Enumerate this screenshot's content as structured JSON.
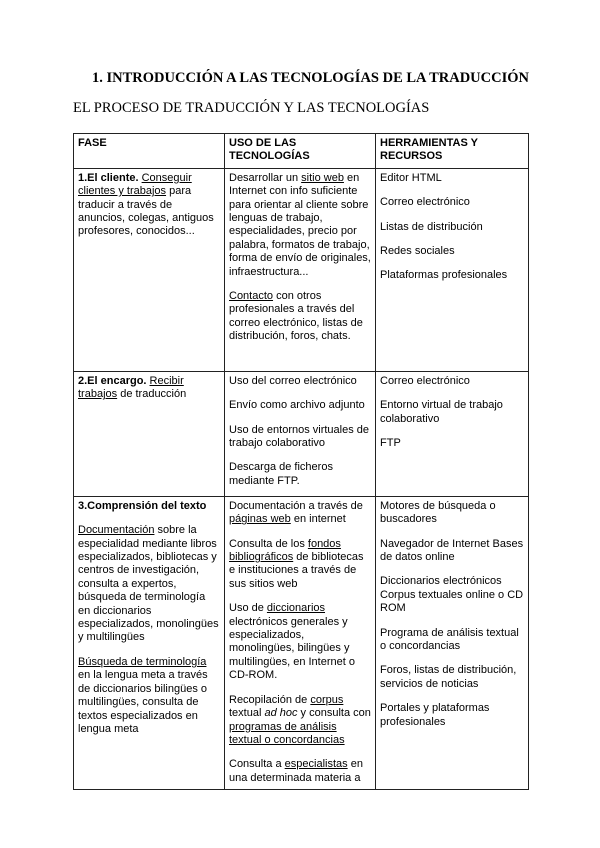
{
  "document": {
    "title": "1.  INTRODUCCIÓN A LAS TECNOLOGÍAS DE LA TRADUCCIÓN",
    "subtitle": "EL PROCESO DE TRADUCCIÓN Y LAS TECNOLOGÍAS"
  },
  "table": {
    "headers": [
      "FASE",
      "USO DE LAS TECNOLOGÍAS",
      "HERRAMIENTAS Y RECURSOS"
    ],
    "rows": [
      {
        "cells": [
          {
            "paragraphs": [
              [
                {
                  "text": "1.El cliente. ",
                  "style": "b"
                },
                {
                  "text": "Conseguir clientes y trabajos",
                  "style": "u"
                },
                {
                  "text": " para traducir a través de anuncios, colegas, antiguos profesores, conocidos...",
                  "style": ""
                }
              ]
            ]
          },
          {
            "paragraphs": [
              [
                {
                  "text": "Desarrollar un ",
                  "style": ""
                },
                {
                  "text": "sitio web",
                  "style": "u"
                },
                {
                  "text": " en Internet con info suficiente para orientar al cliente sobre lenguas de trabajo, especialidades, precio por palabra, formatos de trabajo, forma de envío de originales, infraestructura...",
                  "style": ""
                }
              ],
              [
                {
                  "text": "Contacto",
                  "style": "u"
                },
                {
                  "text": " con otros profesionales a través del correo electrónico, listas de distribución, foros, chats.",
                  "style": ""
                }
              ]
            ]
          },
          {
            "paragraphs": [
              [
                {
                  "text": "Editor HTML",
                  "style": ""
                }
              ],
              [
                {
                  "text": "Correo electrónico",
                  "style": ""
                }
              ],
              [
                {
                  "text": "Listas de distribución",
                  "style": ""
                }
              ],
              [
                {
                  "text": "Redes sociales",
                  "style": ""
                }
              ],
              [
                {
                  "text": "Plataformas profesionales",
                  "style": ""
                }
              ]
            ]
          }
        ]
      },
      {
        "cells": [
          {
            "paragraphs": [
              [
                {
                  "text": "2.El encargo. ",
                  "style": "b"
                },
                {
                  "text": "Recibir trabajos",
                  "style": "u"
                },
                {
                  "text": " de traducción",
                  "style": ""
                }
              ]
            ]
          },
          {
            "paragraphs": [
              [
                {
                  "text": "Uso del correo electrónico",
                  "style": ""
                }
              ],
              [
                {
                  "text": "Envío como archivo adjunto",
                  "style": ""
                }
              ],
              [
                {
                  "text": "Uso de entornos virtuales de trabajo colaborativo",
                  "style": ""
                }
              ],
              [
                {
                  "text": "Descarga de ficheros mediante FTP.",
                  "style": ""
                }
              ]
            ]
          },
          {
            "paragraphs": [
              [
                {
                  "text": "Correo electrónico",
                  "style": ""
                }
              ],
              [
                {
                  "text": "Entorno virtual de trabajo colaborativo",
                  "style": ""
                }
              ],
              [
                {
                  "text": "FTP",
                  "style": ""
                }
              ]
            ]
          }
        ]
      },
      {
        "cells": [
          {
            "paragraphs": [
              [
                {
                  "text": "3.Comprensión del texto",
                  "style": "b"
                }
              ],
              [
                {
                  "text": "Documentación",
                  "style": "u"
                },
                {
                  "text": " sobre la especialidad mediante libros especializados, bibliotecas y centros de investigación, consulta a expertos, búsqueda de terminología en diccionarios especializados, monolingües y multilingües",
                  "style": ""
                }
              ],
              [
                {
                  "text": "Búsqueda de terminología",
                  "style": "u"
                },
                {
                  "text": " en la lengua meta a través de diccionarios bilingües o multilingües, consulta de textos especializados en lengua meta",
                  "style": ""
                }
              ]
            ]
          },
          {
            "paragraphs": [
              [
                {
                  "text": "Documentación a través de ",
                  "style": ""
                },
                {
                  "text": "páginas web",
                  "style": "u"
                },
                {
                  "text": " en internet",
                  "style": ""
                }
              ],
              [
                {
                  "text": "Consulta de los ",
                  "style": ""
                },
                {
                  "text": "fondos bibliográficos",
                  "style": "u"
                },
                {
                  "text": " de bibliotecas e instituciones a través de sus sitios web",
                  "style": ""
                }
              ],
              [
                {
                  "text": "Uso de ",
                  "style": ""
                },
                {
                  "text": "diccionarios",
                  "style": "u"
                },
                {
                  "text": " electrónicos generales y especializados, monolingües, bilingües y multilingües, en Internet o CD-ROM.",
                  "style": ""
                }
              ],
              [
                {
                  "text": "Recopilación de ",
                  "style": ""
                },
                {
                  "text": "corpus",
                  "style": "u"
                },
                {
                  "text": " textual ",
                  "style": ""
                },
                {
                  "text": "ad hoc",
                  "style": "i"
                },
                {
                  "text": " y consulta con ",
                  "style": ""
                },
                {
                  "text": "programas de análisis textual o concordancias",
                  "style": "u"
                }
              ],
              [
                {
                  "text": "Consulta a ",
                  "style": ""
                },
                {
                  "text": "especialistas",
                  "style": "u"
                },
                {
                  "text": " en una determinada materia a",
                  "style": ""
                }
              ]
            ]
          },
          {
            "paragraphs": [
              [
                {
                  "text": "Motores de búsqueda o buscadores",
                  "style": ""
                }
              ],
              [
                {
                  "text": "Navegador de Internet Bases de datos online",
                  "style": ""
                }
              ],
              [
                {
                  "text": "Diccionarios electrónicos Corpus textuales online o CD ROM",
                  "style": ""
                }
              ],
              [
                {
                  "text": "Programa de análisis textual o concordancias",
                  "style": ""
                }
              ],
              [
                {
                  "text": "Foros, listas de distribución, servicios de noticias",
                  "style": ""
                }
              ],
              [
                {
                  "text": "Portales y plataformas profesionales",
                  "style": ""
                }
              ]
            ]
          }
        ]
      }
    ]
  }
}
